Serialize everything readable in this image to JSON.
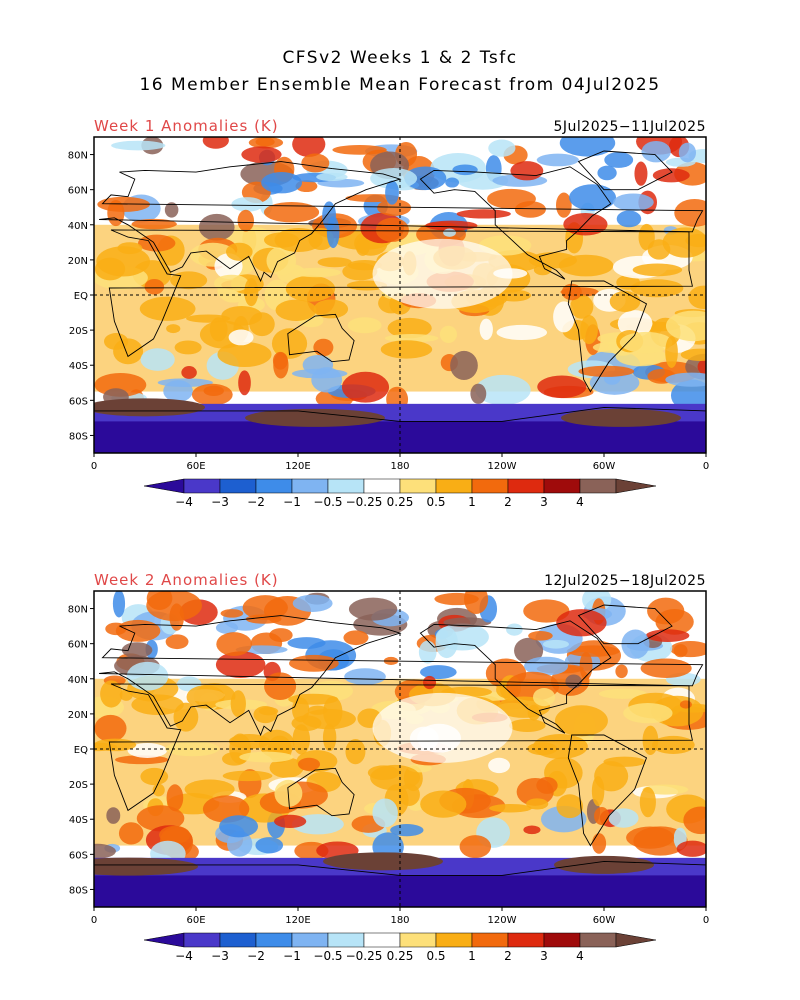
{
  "title": {
    "line1": "CFSv2 Weeks 1 & 2 Tsfc",
    "line2": "16 Member Ensemble Mean Forecast from 04Jul2025"
  },
  "panels": [
    {
      "label": "Week 1 Anomalies (K)",
      "date_range": "5Jul2025−11Jul2025"
    },
    {
      "label": "Week 2 Anomalies (K)",
      "date_range": "12Jul2025−18Jul2025"
    }
  ],
  "label_color": "#e04848",
  "lat_labels": [
    "80N",
    "60N",
    "40N",
    "20N",
    "EQ",
    "20S",
    "40S",
    "60S",
    "80S"
  ],
  "lon_labels": [
    "0",
    "60E",
    "120E",
    "180",
    "120W",
    "60W",
    "0"
  ],
  "colorbar": {
    "labels": [
      "−4",
      "−3",
      "−2",
      "−1",
      "−0.5",
      "−0.25",
      "0.25",
      "0.5",
      "1",
      "2",
      "3",
      "4"
    ],
    "colors": [
      "#2b0a9a",
      "#4a38c9",
      "#1d5fd0",
      "#3e8ce9",
      "#7fb4f2",
      "#b7e4f7",
      "#ffffff",
      "#fde07a",
      "#f9ae15",
      "#f26a0d",
      "#de2a0f",
      "#9f0b0b",
      "#8a6258",
      "#6b4136"
    ]
  }
}
